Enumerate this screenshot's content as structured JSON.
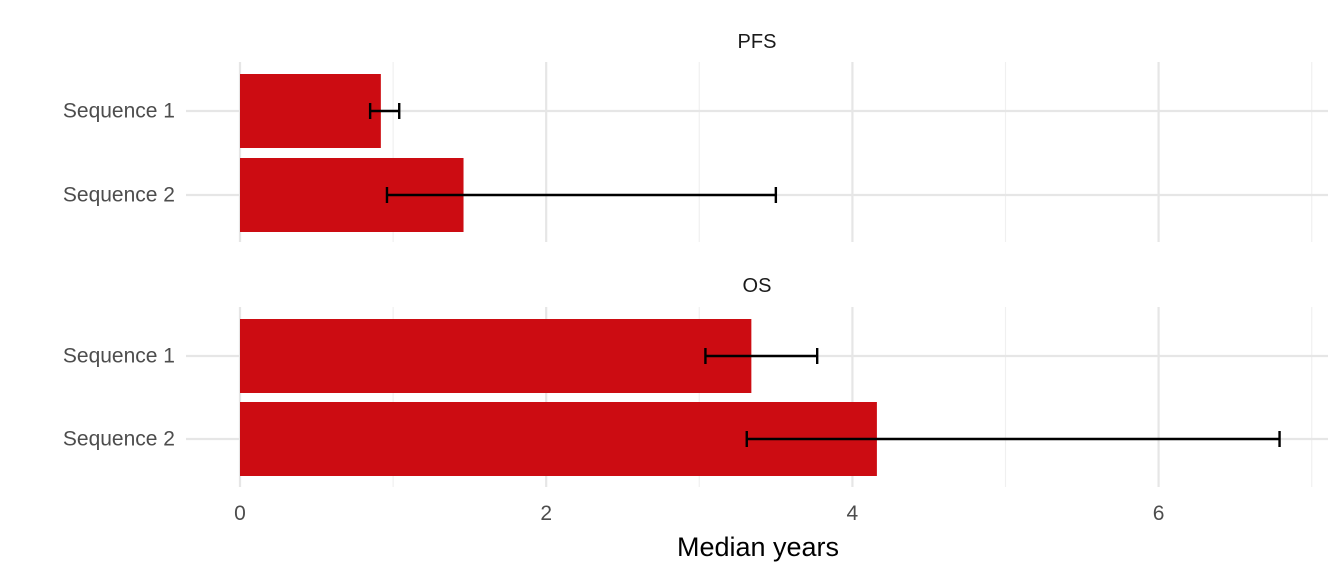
{
  "chart_data": {
    "type": "bar",
    "orientation": "horizontal",
    "xlabel": "Median years",
    "xlim": [
      0,
      7
    ],
    "x_ticks": [
      "0",
      "2",
      "4",
      "6"
    ],
    "categories": [
      "Sequence 1",
      "Sequence 2"
    ],
    "bar_color": "#cc0c12",
    "grid": true,
    "panels": [
      {
        "title": "PFS",
        "bars": [
          {
            "category": "Sequence 1",
            "value": 0.92,
            "ci_low": 0.85,
            "ci_high": 1.04
          },
          {
            "category": "Sequence 2",
            "value": 1.46,
            "ci_low": 0.96,
            "ci_high": 3.5
          }
        ]
      },
      {
        "title": "OS",
        "bars": [
          {
            "category": "Sequence 1",
            "value": 3.34,
            "ci_low": 3.04,
            "ci_high": 3.77
          },
          {
            "category": "Sequence 2",
            "value": 4.16,
            "ci_low": 3.31,
            "ci_high": 6.79
          }
        ]
      }
    ]
  }
}
